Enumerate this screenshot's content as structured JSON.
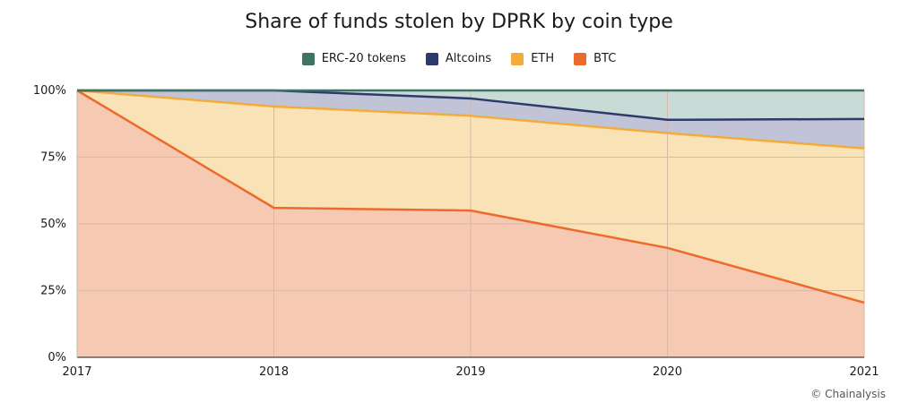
{
  "chart_data": {
    "type": "area",
    "stacked": true,
    "title": "Share of funds stolen by DPRK by coin type",
    "x": [
      "2017",
      "2018",
      "2019",
      "2020",
      "2021"
    ],
    "y_ticks": [
      "0%",
      "25%",
      "50%",
      "75%",
      "100%"
    ],
    "ylim": [
      0,
      100
    ],
    "grid": true,
    "legend_position": "top",
    "series": [
      {
        "name": "BTC",
        "values": [
          100,
          56,
          55,
          41,
          20.5
        ],
        "line_color": "#ec6a2c",
        "fill_color": "#f6c9b3"
      },
      {
        "name": "ETH",
        "values": [
          0,
          38,
          35.5,
          43,
          57.8
        ],
        "line_color": "#f3ac3c",
        "fill_color": "#f9e2b5"
      },
      {
        "name": "Altcoins",
        "values": [
          0,
          6,
          6.5,
          5,
          11
        ],
        "line_color": "#2d3a6b",
        "fill_color": "#c1c4d6"
      },
      {
        "name": "ERC-20 tokens",
        "values": [
          0,
          0,
          3,
          11,
          10.7
        ],
        "line_color": "#3f7464",
        "fill_color": "#c8dbd6"
      }
    ],
    "legend": [
      {
        "name": "ERC-20 tokens",
        "color": "#3f7464"
      },
      {
        "name": "Altcoins",
        "color": "#2d3a6b"
      },
      {
        "name": "ETH",
        "color": "#f3ac3c"
      },
      {
        "name": "BTC",
        "color": "#ec6a2c"
      }
    ]
  },
  "credit": "© Chainalysis"
}
